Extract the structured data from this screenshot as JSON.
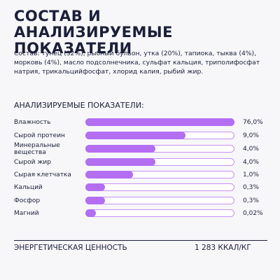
{
  "header": {
    "title": "СОСТАВ И АНАЛИЗИРУЕМЫЕ ПОКАЗАТЕЛИ"
  },
  "composition": "Состав: тунец (32%), рыбный бульон, утка (20%), тапиока, тыква (4%), морковь (4%), масло подсолнечника, сульфат кальция, триполифосфат натрия, трикальцийфосфат, хлорид калия, рыбий жир.",
  "indicators": {
    "title": "АНАЛИЗИРУЕМЫЕ ПОКАЗАТЕЛИ:",
    "rows": [
      {
        "label": "Влажность",
        "value": "76,0%"
      },
      {
        "label": "Сырой протеин",
        "value": "9,0%"
      },
      {
        "label": "Минеральные вещества",
        "value": "4,0%"
      },
      {
        "label": "Сырой жир",
        "value": "4,0%"
      },
      {
        "label": "Сырая клетчатка",
        "value": "1,0%"
      },
      {
        "label": "Кальций",
        "value": "0,3%"
      },
      {
        "label": "Фосфор",
        "value": "0,3%"
      },
      {
        "label": "Магний",
        "value": "0,02%"
      }
    ]
  },
  "energy": {
    "label": "ЭНЕРГЕТИЧЕСКАЯ ЦЕННОСТЬ",
    "value": "1 283 ККАЛ/КГ"
  }
}
